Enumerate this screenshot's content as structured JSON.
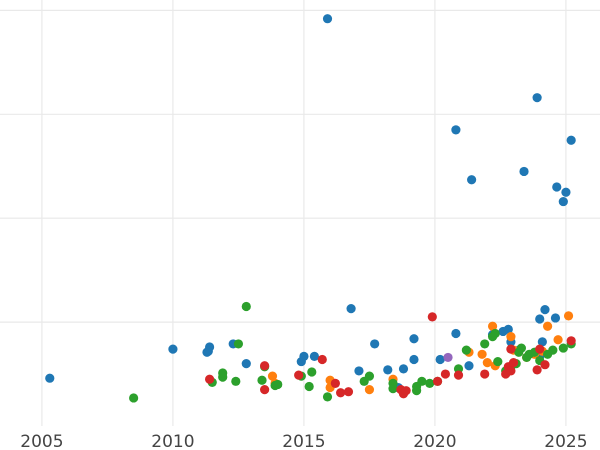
{
  "chart_data": {
    "type": "scatter",
    "title": "",
    "xlabel": "",
    "ylabel": "",
    "xlim": [
      2003.4,
      2026.3
    ],
    "ylim": [
      0,
      4.1
    ],
    "x_ticks": [
      2005,
      2010,
      2015,
      2020,
      2025
    ],
    "x_tick_labels": [
      "2005",
      "2010",
      "2015",
      "2020",
      "2025"
    ],
    "y_gridlines": [
      1,
      2,
      3,
      4
    ],
    "grid": "on",
    "legend": "none",
    "series": [
      {
        "color": "#1f77b4",
        "points": [
          [
            2005.3,
            0.46
          ],
          [
            2010.0,
            0.74
          ],
          [
            2011.3,
            0.71
          ],
          [
            2011.4,
            0.76
          ],
          [
            2011.35,
            0.72
          ],
          [
            2012.3,
            0.79
          ],
          [
            2012.8,
            0.6
          ],
          [
            2014.9,
            0.62
          ],
          [
            2015.0,
            0.67
          ],
          [
            2015.4,
            0.67
          ],
          [
            2015.9,
            3.92
          ],
          [
            2016.8,
            1.13
          ],
          [
            2017.1,
            0.53
          ],
          [
            2017.7,
            0.79
          ],
          [
            2018.2,
            0.54
          ],
          [
            2018.6,
            0.37
          ],
          [
            2018.8,
            0.55
          ],
          [
            2019.2,
            0.64
          ],
          [
            2019.2,
            0.84
          ],
          [
            2020.2,
            0.64
          ],
          [
            2020.8,
            0.89
          ],
          [
            2020.8,
            2.85
          ],
          [
            2021.3,
            0.58
          ],
          [
            2021.4,
            2.37
          ],
          [
            2022.2,
            0.88
          ],
          [
            2022.6,
            0.91
          ],
          [
            2022.8,
            0.93
          ],
          [
            2022.9,
            0.81
          ],
          [
            2023.4,
            2.45
          ],
          [
            2023.9,
            3.16
          ],
          [
            2024.0,
            1.03
          ],
          [
            2024.2,
            1.12
          ],
          [
            2024.6,
            1.04
          ],
          [
            2024.65,
            2.3
          ],
          [
            2024.9,
            2.16
          ],
          [
            2025.0,
            2.25
          ],
          [
            2025.2,
            2.75
          ],
          [
            2024.1,
            0.81
          ],
          [
            2023.2,
            0.73
          ],
          [
            2024.0,
            0.67
          ]
        ]
      },
      {
        "color": "#ff7f0e",
        "points": [
          [
            2013.8,
            0.48
          ],
          [
            2013.9,
            0.41
          ],
          [
            2016.0,
            0.44
          ],
          [
            2016.0,
            0.37
          ],
          [
            2017.5,
            0.35
          ],
          [
            2018.4,
            0.45
          ],
          [
            2021.3,
            0.71
          ],
          [
            2021.8,
            0.69
          ],
          [
            2022.2,
            0.96
          ],
          [
            2022.3,
            0.58
          ],
          [
            2022.9,
            0.86
          ],
          [
            2023.0,
            0.73
          ],
          [
            2023.5,
            0.66
          ],
          [
            2023.8,
            0.69
          ],
          [
            2024.1,
            0.72
          ],
          [
            2024.3,
            0.96
          ],
          [
            2024.7,
            0.83
          ],
          [
            2025.1,
            1.06
          ],
          [
            2022.0,
            0.61
          ]
        ]
      },
      {
        "color": "#2ca02c",
        "points": [
          [
            2008.5,
            0.27
          ],
          [
            2011.5,
            0.42
          ],
          [
            2011.9,
            0.47
          ],
          [
            2011.9,
            0.51
          ],
          [
            2012.4,
            0.43
          ],
          [
            2012.5,
            0.79
          ],
          [
            2012.8,
            1.15
          ],
          [
            2013.4,
            0.44
          ],
          [
            2013.5,
            0.57
          ],
          [
            2013.9,
            0.39
          ],
          [
            2014.0,
            0.4
          ],
          [
            2014.9,
            0.48
          ],
          [
            2015.3,
            0.52
          ],
          [
            2015.2,
            0.38
          ],
          [
            2015.9,
            0.28
          ],
          [
            2017.3,
            0.43
          ],
          [
            2017.5,
            0.48
          ],
          [
            2018.4,
            0.41
          ],
          [
            2018.4,
            0.36
          ],
          [
            2019.3,
            0.38
          ],
          [
            2019.3,
            0.34
          ],
          [
            2019.5,
            0.43
          ],
          [
            2019.8,
            0.41
          ],
          [
            2020.1,
            0.43
          ],
          [
            2020.9,
            0.55
          ],
          [
            2021.2,
            0.73
          ],
          [
            2021.9,
            0.79
          ],
          [
            2022.2,
            0.86
          ],
          [
            2022.3,
            0.89
          ],
          [
            2022.4,
            0.62
          ],
          [
            2022.7,
            0.53
          ],
          [
            2022.9,
            0.57
          ],
          [
            2023.1,
            0.6
          ],
          [
            2023.2,
            0.71
          ],
          [
            2023.3,
            0.75
          ],
          [
            2023.5,
            0.66
          ],
          [
            2023.6,
            0.69
          ],
          [
            2023.8,
            0.71
          ],
          [
            2024.0,
            0.63
          ],
          [
            2024.3,
            0.69
          ],
          [
            2024.5,
            0.73
          ],
          [
            2024.9,
            0.75
          ],
          [
            2025.2,
            0.79
          ]
        ]
      },
      {
        "color": "#d62728",
        "points": [
          [
            2011.4,
            0.45
          ],
          [
            2013.5,
            0.35
          ],
          [
            2013.5,
            0.58
          ],
          [
            2014.8,
            0.49
          ],
          [
            2015.7,
            0.64
          ],
          [
            2016.2,
            0.41
          ],
          [
            2016.4,
            0.32
          ],
          [
            2016.7,
            0.33
          ],
          [
            2018.7,
            0.35
          ],
          [
            2018.8,
            0.31
          ],
          [
            2018.9,
            0.34
          ],
          [
            2019.9,
            1.05
          ],
          [
            2020.1,
            0.43
          ],
          [
            2020.4,
            0.5
          ],
          [
            2020.9,
            0.49
          ],
          [
            2021.9,
            0.5
          ],
          [
            2022.7,
            0.5
          ],
          [
            2022.8,
            0.57
          ],
          [
            2022.9,
            0.53
          ],
          [
            2023.0,
            0.61
          ],
          [
            2022.9,
            0.74
          ],
          [
            2023.9,
            0.54
          ],
          [
            2024.0,
            0.74
          ],
          [
            2024.2,
            0.59
          ],
          [
            2025.2,
            0.82
          ]
        ]
      },
      {
        "color": "#9467bd",
        "points": [
          [
            2020.5,
            0.66
          ]
        ]
      }
    ]
  }
}
